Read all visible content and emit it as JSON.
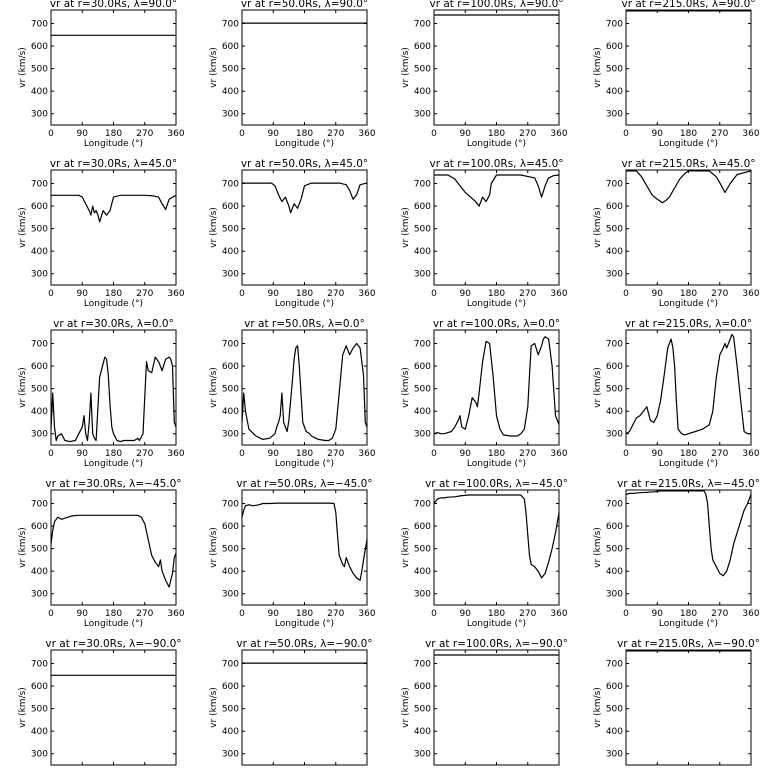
{
  "figure": {
    "rows": 5,
    "cols": 4
  },
  "chart_data": [
    {
      "type": "line",
      "title": "vr at r=30.0Rs, λ=90.0°",
      "xlabel": "Longitude (°)",
      "ylabel": "vr (km/s)",
      "xlim": [
        0,
        360
      ],
      "ylim": [
        250,
        760
      ],
      "xticks": [
        0,
        90,
        180,
        270,
        360
      ],
      "yticks": [
        300,
        400,
        500,
        600,
        700
      ],
      "x": [
        0,
        360
      ],
      "y": [
        648,
        648
      ]
    },
    {
      "type": "line",
      "title": "vr at r=50.0Rs, λ=90.0°",
      "xlabel": "Longitude (°)",
      "ylabel": "vr (km/s)",
      "xlim": [
        0,
        360
      ],
      "ylim": [
        250,
        760
      ],
      "xticks": [
        0,
        90,
        180,
        270,
        360
      ],
      "yticks": [
        300,
        400,
        500,
        600,
        700
      ],
      "x": [
        0,
        360
      ],
      "y": [
        702,
        702
      ]
    },
    {
      "type": "line",
      "title": "vr at r=100.0Rs, λ=90.0°",
      "xlabel": "Longitude (°)",
      "ylabel": "vr (km/s)",
      "xlim": [
        0,
        360
      ],
      "ylim": [
        250,
        760
      ],
      "xticks": [
        0,
        90,
        180,
        270,
        360
      ],
      "yticks": [
        300,
        400,
        500,
        600,
        700
      ],
      "x": [
        0,
        360
      ],
      "y": [
        738,
        738
      ]
    },
    {
      "type": "line",
      "title": "vr at r=215.0Rs, λ=90.0°",
      "xlabel": "Longitude (°)",
      "ylabel": "vr (km/s)",
      "xlim": [
        0,
        360
      ],
      "ylim": [
        250,
        760
      ],
      "xticks": [
        0,
        90,
        180,
        270,
        360
      ],
      "yticks": [
        300,
        400,
        500,
        600,
        700
      ],
      "x": [
        0,
        360
      ],
      "y": [
        756,
        756
      ]
    },
    {
      "type": "line",
      "title": "vr at r=30.0Rs, λ=45.0°",
      "xlabel": "Longitude (°)",
      "ylabel": "vr (km/s)",
      "xlim": [
        0,
        360
      ],
      "ylim": [
        250,
        760
      ],
      "xticks": [
        0,
        90,
        180,
        270,
        360
      ],
      "yticks": [
        300,
        400,
        500,
        600,
        700
      ],
      "x": [
        0,
        80,
        90,
        100,
        110,
        115,
        120,
        125,
        130,
        135,
        140,
        150,
        160,
        170,
        180,
        200,
        270,
        295,
        310,
        320,
        330,
        340,
        350,
        360
      ],
      "y": [
        648,
        648,
        640,
        610,
        580,
        560,
        600,
        570,
        580,
        560,
        530,
        580,
        560,
        580,
        640,
        648,
        648,
        645,
        640,
        610,
        585,
        630,
        640,
        648
      ]
    },
    {
      "type": "line",
      "title": "vr at r=50.0Rs, λ=45.0°",
      "xlabel": "Longitude (°)",
      "ylabel": "vr (km/s)",
      "xlim": [
        0,
        360
      ],
      "ylim": [
        250,
        760
      ],
      "xticks": [
        0,
        90,
        180,
        270,
        360
      ],
      "yticks": [
        300,
        400,
        500,
        600,
        700
      ],
      "x": [
        0,
        85,
        95,
        105,
        115,
        125,
        135,
        140,
        150,
        160,
        170,
        180,
        200,
        280,
        300,
        310,
        320,
        330,
        340,
        360
      ],
      "y": [
        702,
        702,
        690,
        650,
        620,
        640,
        600,
        570,
        610,
        590,
        630,
        690,
        702,
        702,
        695,
        670,
        630,
        650,
        695,
        702
      ]
    },
    {
      "type": "line",
      "title": "vr at r=100.0Rs, λ=45.0°",
      "xlabel": "Longitude (°)",
      "ylabel": "vr (km/s)",
      "xlim": [
        0,
        360
      ],
      "ylim": [
        250,
        760
      ],
      "xticks": [
        0,
        90,
        180,
        270,
        360
      ],
      "yticks": [
        300,
        400,
        500,
        600,
        700
      ],
      "x": [
        0,
        40,
        60,
        75,
        90,
        105,
        120,
        130,
        140,
        150,
        160,
        165,
        180,
        250,
        290,
        300,
        310,
        320,
        330,
        345,
        360
      ],
      "y": [
        738,
        738,
        720,
        690,
        660,
        640,
        620,
        600,
        640,
        620,
        650,
        700,
        738,
        738,
        725,
        690,
        640,
        690,
        725,
        735,
        738
      ]
    },
    {
      "type": "line",
      "title": "vr at r=215.0Rs, λ=45.0°",
      "xlabel": "Longitude (°)",
      "ylabel": "vr (km/s)",
      "xlim": [
        0,
        360
      ],
      "ylim": [
        250,
        760
      ],
      "xticks": [
        0,
        90,
        180,
        270,
        360
      ],
      "yticks": [
        300,
        400,
        500,
        600,
        700
      ],
      "x": [
        0,
        30,
        45,
        60,
        75,
        90,
        105,
        115,
        125,
        140,
        155,
        170,
        180,
        210,
        240,
        260,
        275,
        285,
        300,
        320,
        360
      ],
      "y": [
        756,
        756,
        730,
        690,
        650,
        630,
        615,
        625,
        640,
        680,
        720,
        745,
        756,
        756,
        756,
        730,
        690,
        660,
        700,
        740,
        756
      ]
    },
    {
      "type": "line",
      "title": "vr at r=30.0Rs, λ=0.0°",
      "xlabel": "Longitude (°)",
      "ylabel": "vr (km/s)",
      "xlim": [
        0,
        360
      ],
      "ylim": [
        250,
        760
      ],
      "xticks": [
        0,
        90,
        180,
        270,
        360
      ],
      "yticks": [
        300,
        400,
        500,
        600,
        700
      ],
      "x": [
        0,
        5,
        10,
        15,
        20,
        30,
        40,
        55,
        70,
        80,
        90,
        95,
        100,
        105,
        110,
        115,
        120,
        125,
        130,
        140,
        150,
        155,
        160,
        165,
        170,
        175,
        180,
        190,
        200,
        210,
        220,
        240,
        250,
        255,
        265,
        275,
        280,
        290,
        300,
        310,
        320,
        330,
        340,
        345,
        350,
        355,
        360
      ],
      "y": [
        320,
        480,
        330,
        270,
        290,
        300,
        270,
        265,
        270,
        300,
        330,
        380,
        300,
        270,
        350,
        480,
        300,
        280,
        270,
        550,
        610,
        640,
        630,
        560,
        430,
        330,
        300,
        270,
        265,
        270,
        270,
        270,
        280,
        270,
        300,
        620,
        580,
        570,
        640,
        620,
        580,
        630,
        640,
        630,
        600,
        350,
        330
      ]
    },
    {
      "type": "line",
      "title": "vr at r=50.0Rs, λ=0.0°",
      "xlabel": "Longitude (°)",
      "ylabel": "vr (km/s)",
      "xlim": [
        0,
        360
      ],
      "ylim": [
        250,
        760
      ],
      "xticks": [
        0,
        90,
        180,
        270,
        360
      ],
      "yticks": [
        300,
        400,
        500,
        600,
        700
      ],
      "x": [
        0,
        5,
        10,
        20,
        40,
        60,
        80,
        95,
        100,
        105,
        110,
        115,
        120,
        130,
        135,
        145,
        150,
        155,
        160,
        165,
        175,
        185,
        195,
        200,
        220,
        240,
        250,
        260,
        270,
        280,
        290,
        300,
        310,
        320,
        330,
        340,
        350,
        355,
        360
      ],
      "y": [
        350,
        480,
        400,
        320,
        290,
        275,
        280,
        300,
        330,
        350,
        380,
        480,
        350,
        310,
        360,
        530,
        630,
        680,
        690,
        600,
        350,
        310,
        300,
        290,
        275,
        270,
        270,
        280,
        320,
        480,
        650,
        690,
        650,
        680,
        700,
        680,
        560,
        350,
        330
      ]
    },
    {
      "type": "line",
      "title": "vr at r=100.0Rs, λ=0.0°",
      "xlabel": "Longitude (°)",
      "ylabel": "vr (km/s)",
      "xlim": [
        0,
        360
      ],
      "ylim": [
        250,
        760
      ],
      "xticks": [
        0,
        90,
        180,
        270,
        360
      ],
      "yticks": [
        300,
        400,
        500,
        600,
        700
      ],
      "x": [
        0,
        10,
        20,
        30,
        40,
        50,
        60,
        70,
        75,
        80,
        90,
        100,
        110,
        120,
        125,
        130,
        140,
        150,
        160,
        170,
        180,
        190,
        200,
        220,
        240,
        250,
        260,
        270,
        275,
        280,
        290,
        300,
        310,
        315,
        320,
        330,
        340,
        350,
        360
      ],
      "y": [
        300,
        305,
        300,
        300,
        305,
        310,
        330,
        360,
        380,
        330,
        320,
        380,
        460,
        440,
        420,
        480,
        620,
        710,
        700,
        560,
        380,
        320,
        295,
        290,
        290,
        300,
        320,
        420,
        560,
        690,
        700,
        650,
        690,
        720,
        730,
        720,
        600,
        380,
        340
      ]
    },
    {
      "type": "line",
      "title": "vr at r=215.0Rs, λ=0.0°",
      "xlabel": "Longitude (°)",
      "ylabel": "vr (km/s)",
      "xlim": [
        0,
        360
      ],
      "ylim": [
        250,
        760
      ],
      "xticks": [
        0,
        90,
        180,
        270,
        360
      ],
      "yticks": [
        300,
        400,
        500,
        600,
        700
      ],
      "x": [
        0,
        10,
        20,
        30,
        40,
        50,
        60,
        70,
        80,
        90,
        100,
        110,
        120,
        125,
        130,
        135,
        140,
        145,
        150,
        160,
        170,
        180,
        200,
        220,
        240,
        250,
        260,
        270,
        280,
        285,
        290,
        300,
        305,
        310,
        320,
        330,
        340,
        350,
        360
      ],
      "y": [
        300,
        310,
        340,
        370,
        380,
        400,
        420,
        360,
        350,
        380,
        450,
        560,
        680,
        700,
        720,
        680,
        600,
        450,
        320,
        300,
        295,
        300,
        310,
        320,
        340,
        400,
        550,
        650,
        680,
        700,
        680,
        720,
        740,
        730,
        600,
        450,
        310,
        300,
        300
      ]
    },
    {
      "type": "line",
      "title": "vr at r=30.0Rs, λ=−45.0°",
      "xlabel": "Longitude (°)",
      "ylabel": "vr (km/s)",
      "xlim": [
        0,
        360
      ],
      "ylim": [
        250,
        760
      ],
      "xticks": [
        0,
        90,
        180,
        270,
        360
      ],
      "yticks": [
        300,
        400,
        500,
        600,
        700
      ],
      "x": [
        0,
        5,
        10,
        20,
        30,
        40,
        50,
        60,
        80,
        100,
        150,
        200,
        250,
        260,
        270,
        280,
        290,
        300,
        310,
        315,
        320,
        330,
        340,
        350,
        355,
        360
      ],
      "y": [
        520,
        580,
        620,
        640,
        630,
        635,
        640,
        645,
        648,
        648,
        648,
        648,
        648,
        640,
        610,
        540,
        470,
        440,
        420,
        450,
        400,
        360,
        330,
        390,
        460,
        480
      ]
    },
    {
      "type": "line",
      "title": "vr at r=50.0Rs, λ=−45.0°",
      "xlabel": "Longitude (°)",
      "ylabel": "vr (km/s)",
      "xlim": [
        0,
        360
      ],
      "ylim": [
        250,
        760
      ],
      "xticks": [
        0,
        90,
        180,
        270,
        360
      ],
      "yticks": [
        300,
        400,
        500,
        600,
        700
      ],
      "x": [
        0,
        5,
        10,
        20,
        30,
        40,
        50,
        60,
        80,
        100,
        150,
        200,
        250,
        265,
        270,
        275,
        280,
        290,
        295,
        300,
        310,
        320,
        330,
        340,
        345,
        350,
        360
      ],
      "y": [
        640,
        670,
        690,
        695,
        690,
        692,
        695,
        700,
        700,
        702,
        702,
        702,
        702,
        700,
        660,
        560,
        470,
        430,
        420,
        460,
        420,
        390,
        370,
        360,
        400,
        450,
        540
      ]
    },
    {
      "type": "line",
      "title": "vr at r=100.0Rs, λ=−45.0°",
      "xlabel": "Longitude (°)",
      "ylabel": "vr (km/s)",
      "xlim": [
        0,
        360
      ],
      "ylim": [
        250,
        760
      ],
      "xticks": [
        0,
        90,
        180,
        270,
        360
      ],
      "yticks": [
        300,
        400,
        500,
        600,
        700
      ],
      "x": [
        0,
        10,
        20,
        30,
        40,
        60,
        80,
        100,
        150,
        200,
        250,
        260,
        265,
        270,
        275,
        280,
        290,
        300,
        310,
        320,
        330,
        340,
        350,
        360
      ],
      "y": [
        700,
        720,
        725,
        725,
        728,
        730,
        735,
        738,
        738,
        738,
        738,
        720,
        660,
        560,
        470,
        430,
        420,
        400,
        370,
        390,
        440,
        500,
        570,
        660
      ]
    },
    {
      "type": "line",
      "title": "vr at r=215.0Rs, λ=−45.0°",
      "xlabel": "Longitude (°)",
      "ylabel": "vr (km/s)",
      "xlim": [
        0,
        360
      ],
      "ylim": [
        250,
        760
      ],
      "xticks": [
        0,
        90,
        180,
        270,
        360
      ],
      "yticks": [
        300,
        400,
        500,
        600,
        700
      ],
      "x": [
        0,
        10,
        20,
        40,
        60,
        80,
        100,
        150,
        200,
        225,
        230,
        235,
        240,
        245,
        250,
        260,
        270,
        280,
        290,
        300,
        310,
        320,
        330,
        340,
        350,
        360
      ],
      "y": [
        740,
        745,
        745,
        748,
        750,
        752,
        756,
        756,
        756,
        756,
        740,
        700,
        600,
        500,
        450,
        420,
        390,
        380,
        400,
        450,
        520,
        570,
        620,
        670,
        700,
        740
      ]
    },
    {
      "type": "line",
      "title": "vr at r=30.0Rs, λ=−90.0°",
      "xlabel": "Longitude (°)",
      "ylabel": "vr (km/s)",
      "xlim": [
        0,
        360
      ],
      "ylim": [
        250,
        760
      ],
      "xticks": [
        0,
        90,
        180,
        270,
        360
      ],
      "yticks": [
        300,
        400,
        500,
        600,
        700
      ],
      "x": [
        0,
        360
      ],
      "y": [
        648,
        648
      ]
    },
    {
      "type": "line",
      "title": "vr at r=50.0Rs, λ=−90.0°",
      "xlabel": "Longitude (°)",
      "ylabel": "vr (km/s)",
      "xlim": [
        0,
        360
      ],
      "ylim": [
        250,
        760
      ],
      "xticks": [
        0,
        90,
        180,
        270,
        360
      ],
      "yticks": [
        300,
        400,
        500,
        600,
        700
      ],
      "x": [
        0,
        360
      ],
      "y": [
        702,
        702
      ]
    },
    {
      "type": "line",
      "title": "vr at r=100.0Rs, λ=−90.0°",
      "xlabel": "Longitude (°)",
      "ylabel": "vr (km/s)",
      "xlim": [
        0,
        360
      ],
      "ylim": [
        250,
        760
      ],
      "xticks": [
        0,
        90,
        180,
        270,
        360
      ],
      "yticks": [
        300,
        400,
        500,
        600,
        700
      ],
      "x": [
        0,
        360
      ],
      "y": [
        738,
        738
      ]
    },
    {
      "type": "line",
      "title": "vr at r=215.0Rs, λ=−90.0°",
      "xlabel": "Longitude (°)",
      "ylabel": "vr (km/s)",
      "xlim": [
        0,
        360
      ],
      "ylim": [
        250,
        760
      ],
      "xticks": [
        0,
        90,
        180,
        270,
        360
      ],
      "yticks": [
        300,
        400,
        500,
        600,
        700
      ],
      "x": [
        0,
        360
      ],
      "y": [
        756,
        756
      ]
    }
  ]
}
